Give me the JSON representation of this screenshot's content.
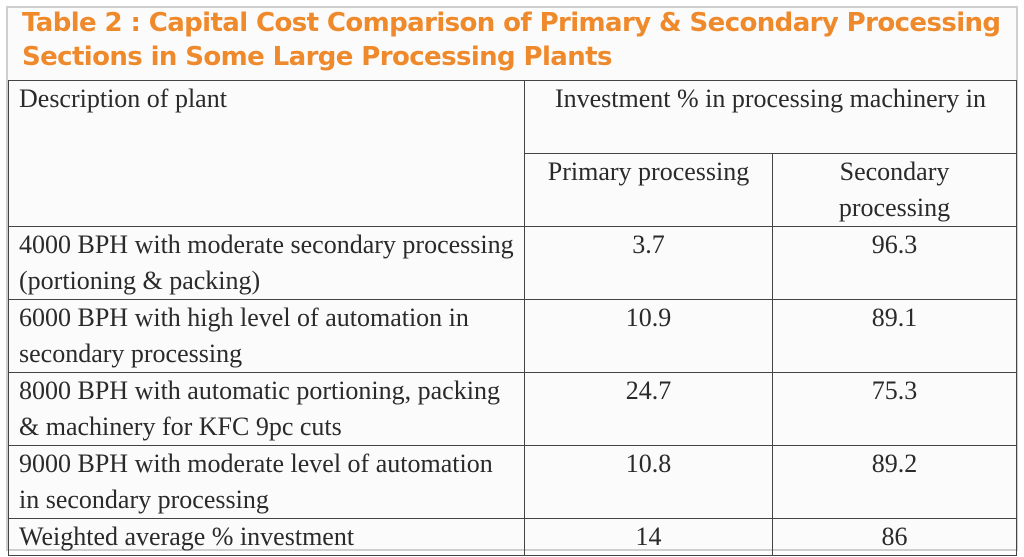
{
  "title": {
    "line1": "Table 2 :  Capital Cost Comparison of Primary & Secondary Processing",
    "line2": "Sections in Some Large Processing Plants"
  },
  "table": {
    "header_description": "Description of plant",
    "header_investment": "Investment % in processing machinery in",
    "header_primary": "Primary processing",
    "header_secondary": "Secondary processing",
    "rows": [
      {
        "description": "4000 BPH with moderate secondary processing (portioning & packing)",
        "primary": "3.7",
        "secondary": "96.3"
      },
      {
        "description": "6000 BPH with high level of automation in secondary processing",
        "primary": "10.9",
        "secondary": "89.1"
      },
      {
        "description": "8000 BPH with automatic portioning, packing & machinery for KFC 9pc cuts",
        "primary": "24.7",
        "secondary": "75.3"
      },
      {
        "description": "9000 BPH with moderate level of automation in secondary processing",
        "primary": "10.8",
        "secondary": "89.2"
      }
    ],
    "summary": {
      "description": "Weighted average % investment",
      "primary": "14",
      "secondary": "86"
    }
  }
}
